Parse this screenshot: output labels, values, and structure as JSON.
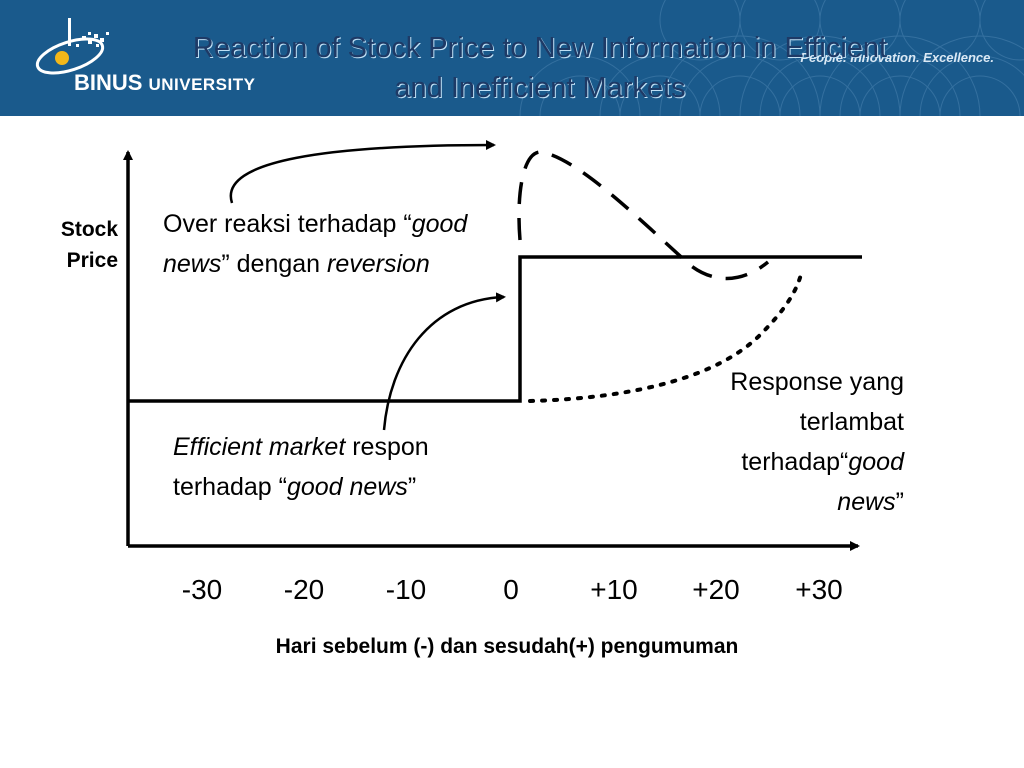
{
  "header": {
    "logo_primary": "BINUS",
    "logo_secondary": "UNIVERSITY",
    "tagline": "People. Innovation. Excellence.",
    "background_color": "#1a5a8c",
    "logo_icon": "binus-orbit-logo-icon"
  },
  "slide": {
    "title_line1": "Reaction of Stock Price to New Information in Efficient",
    "title_line2": "and Inefficient Markets"
  },
  "axes": {
    "y_label_line1": "Stock",
    "y_label_line2": "Price",
    "x_label": "Hari sebelum (-) dan sesudah(+) pengumuman",
    "x_ticks": [
      "-30",
      "-20",
      "-10",
      "0",
      "+10",
      "+20",
      "+30"
    ]
  },
  "annotations": {
    "overreaction": {
      "text1": "Over reaksi terhadap “",
      "italic1": "good news",
      "text2": "” dengan ",
      "italic2": "reversion"
    },
    "efficient": {
      "italic1": "Efficient market",
      "text1": " respon terhadap “",
      "italic2": "good news",
      "text2": "”"
    },
    "delayed": {
      "text1": "Response yang terlambat terhadap“",
      "italic1": "good news",
      "text2": "”"
    }
  },
  "curves": {
    "efficient": "solid step at day 0",
    "overreaction": "dashed overshoot then reversion",
    "delayed": "dotted gradual rise"
  }
}
